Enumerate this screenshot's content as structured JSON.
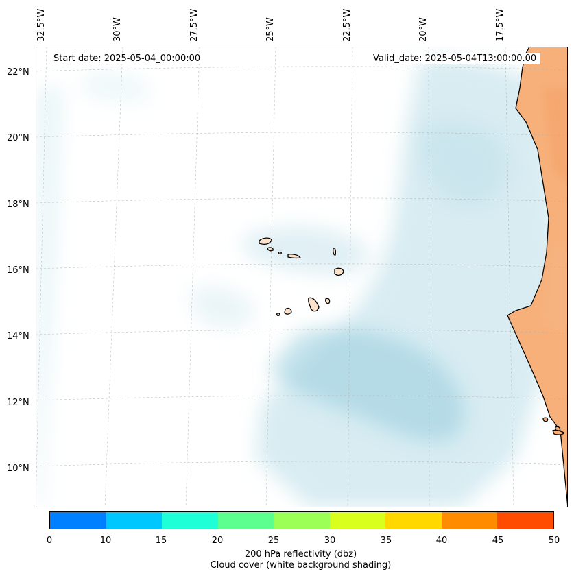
{
  "map": {
    "region": "Eastern North Atlantic (Cabo Verde / West African coast)",
    "lon_labels": [
      "32.5°W",
      "30°W",
      "27.5°W",
      "25°W",
      "22.5°W",
      "20°W",
      "17.5°W"
    ],
    "lat_labels": [
      "22°N",
      "20°N",
      "18°N",
      "16°N",
      "14°N",
      "12°N",
      "10°N"
    ],
    "start_label": "Start date: 2025-05-04_00:00:00",
    "valid_label": "Valid_date: 2025-05-04T13:00:00.00",
    "land_color": "#f7b07a",
    "island_color": "#fde3cc",
    "cloud_color": "#b8dde8"
  },
  "colorbar": {
    "ticks": [
      "0",
      "10",
      "15",
      "20",
      "25",
      "30",
      "35",
      "40",
      "45",
      "50"
    ],
    "colors": [
      "#0080ff",
      "#00c8ff",
      "#1effd8",
      "#5dff8f",
      "#9bff55",
      "#d8ff1e",
      "#ffd800",
      "#ff8c00",
      "#ff4c00"
    ],
    "title": "200 hPa reflectivity (dbz)",
    "subtitle": "Cloud cover (white background shading)"
  }
}
